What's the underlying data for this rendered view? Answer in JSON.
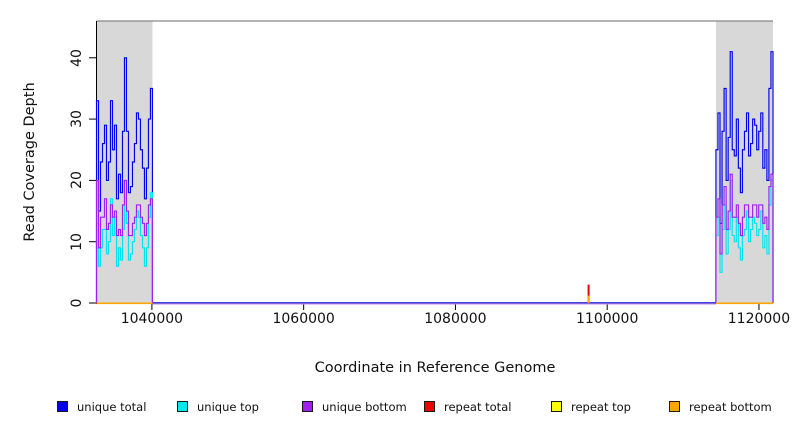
{
  "colors": {
    "band": "#d8d8d8",
    "border": "#888888",
    "axis": "#000000",
    "background": "#ffffff"
  },
  "chart_data": {
    "type": "line",
    "subtype": "step-coverage",
    "title": "",
    "xlabel": "Coordinate in Reference Genome",
    "ylabel": "Read Coverage Depth",
    "xlim": [
      1032700,
      1121850
    ],
    "ylim": [
      0,
      46
    ],
    "grid": false,
    "xticks": [
      1040000,
      1060000,
      1080000,
      1100000,
      1120000
    ],
    "xtick_labels": [
      "1040000",
      "1060000",
      "1080000",
      "1100000",
      "1120000"
    ],
    "yticks": [
      0,
      10,
      20,
      30,
      40
    ],
    "ytick_labels": [
      "0",
      "10",
      "20",
      "30",
      "40"
    ],
    "shaded_regions": [
      [
        1032700,
        1040070
      ],
      [
        1114330,
        1121850
      ]
    ],
    "series_colors": {
      "unique_total": "#0000ee",
      "unique_top": "#00e5ee",
      "unique_bottom": "#a020f0",
      "repeat_total": "#ee0000",
      "repeat_top": "#ffff00",
      "repeat_bottom": "#ffa500"
    },
    "baseline_colors": [
      "#3c3cee",
      "#bb8cee"
    ],
    "clusters": [
      {
        "x_start": 1032700,
        "x_end": 1040070,
        "unique_total": [
          33,
          15,
          23,
          26,
          29,
          20,
          23,
          33,
          25,
          29,
          17,
          21,
          18,
          28,
          40,
          28,
          18,
          19,
          23,
          26,
          31,
          30,
          25,
          22,
          17,
          22,
          30,
          35
        ],
        "unique_top": [
          13,
          6,
          9,
          12,
          12,
          8,
          10,
          17,
          11,
          14,
          6,
          9,
          7,
          12,
          20,
          13,
          7,
          8,
          10,
          12,
          15,
          14,
          11,
          9,
          6,
          9,
          14,
          18
        ],
        "unique_bottom": [
          20,
          9,
          14,
          14,
          17,
          12,
          13,
          16,
          14,
          15,
          11,
          12,
          11,
          16,
          20,
          15,
          11,
          11,
          13,
          14,
          16,
          16,
          14,
          13,
          11,
          13,
          16,
          17
        ]
      },
      {
        "x_start": 1114330,
        "x_end": 1121850,
        "unique_total": [
          25,
          31,
          13,
          28,
          35,
          20,
          27,
          41,
          25,
          24,
          30,
          22,
          18,
          25,
          28,
          31,
          24,
          26,
          30,
          29,
          25,
          28,
          31,
          22,
          25,
          20,
          35,
          41
        ],
        "unique_top": [
          11,
          14,
          5,
          12,
          16,
          8,
          12,
          20,
          11,
          10,
          14,
          9,
          7,
          11,
          12,
          15,
          10,
          12,
          14,
          13,
          11,
          12,
          15,
          9,
          11,
          8,
          16,
          20
        ],
        "unique_bottom": [
          14,
          17,
          8,
          16,
          19,
          12,
          15,
          21,
          14,
          14,
          16,
          13,
          11,
          14,
          16,
          16,
          14,
          14,
          16,
          16,
          14,
          16,
          16,
          13,
          14,
          12,
          19,
          21
        ]
      }
    ],
    "repeat_spike": {
      "x": 1097550,
      "repeat_total": 3,
      "repeat_bottom": 1.2
    }
  },
  "legend": {
    "items": [
      {
        "label": "unique total",
        "color": "#0000ee"
      },
      {
        "label": "unique top",
        "color": "#00e5ee"
      },
      {
        "label": "unique bottom",
        "color": "#a020f0"
      },
      {
        "label": "repeat total",
        "color": "#ee0000"
      },
      {
        "label": "repeat top",
        "color": "#ffff00"
      },
      {
        "label": "repeat bottom",
        "color": "#ffa500"
      }
    ]
  }
}
